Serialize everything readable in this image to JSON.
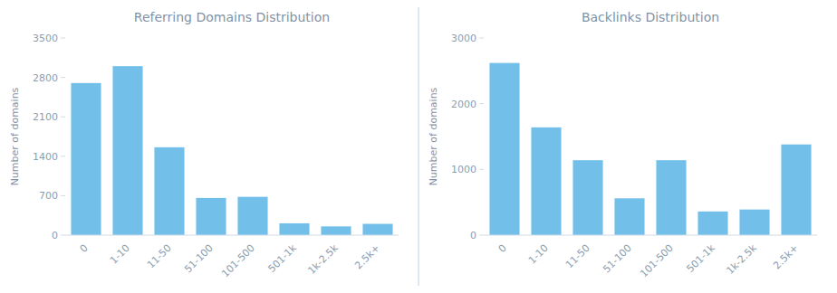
{
  "chart_data": [
    {
      "type": "bar",
      "title": "Referring Domains Distribution",
      "categories": [
        "0",
        "1-10",
        "11-50",
        "51-100",
        "101-500",
        "501-1k",
        "1k-2.5k",
        "2.5k+"
      ],
      "values": [
        2700,
        3000,
        1560,
        660,
        680,
        210,
        155,
        200
      ],
      "color": "#72c0ea",
      "ylim": [
        0,
        3500
      ],
      "yticks": [
        0,
        700,
        1400,
        2100,
        2800,
        3500
      ],
      "ylabel": "Number of domains",
      "grid": false
    },
    {
      "type": "bar",
      "title": "Backlinks Distribution",
      "categories": [
        "0",
        "1-10",
        "11-50",
        "51-100",
        "101-500",
        "501-1k",
        "1k-2.5k",
        "2.5k+"
      ],
      "values": [
        2620,
        1640,
        1140,
        560,
        1140,
        360,
        390,
        1380
      ],
      "color": "#72c0ea",
      "ylim": [
        0,
        3000
      ],
      "yticks": [
        0,
        1000,
        2000,
        3000
      ],
      "ylabel": "Number of domains",
      "grid": false
    }
  ]
}
